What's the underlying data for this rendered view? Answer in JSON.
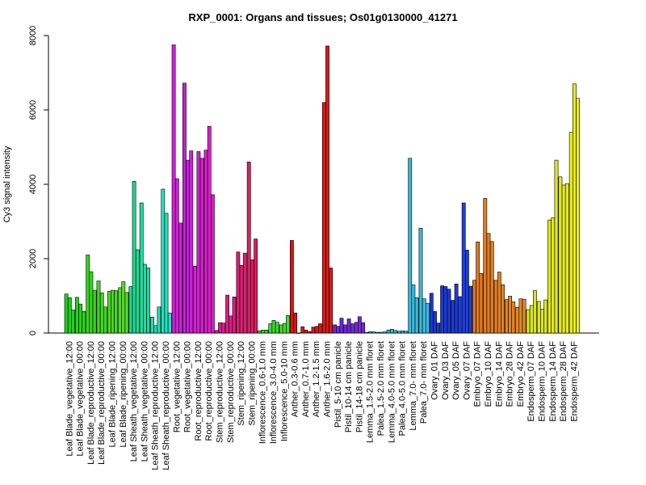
{
  "chart_data": {
    "type": "bar",
    "title": "RXP_0001: Organs and tissues; Os01g0130000_41271",
    "xlabel": "",
    "ylabel": "Cy3 signal intensity",
    "ylim": [
      0,
      8000
    ],
    "yticks": [
      0,
      2000,
      4000,
      6000,
      8000
    ],
    "grid": false,
    "legend": "none",
    "tick_labels": [
      "Leaf Blade_vegetative_12:00",
      "Leaf Blade_vegetative_00:00",
      "Leaf Blade_reproductive_12:00",
      "Leaf Blade_reproductive_00:00",
      "Leaf Blade_ripening_12:00",
      "Leaf Blade_ripening_00:00",
      "Leaf Sheath_vegetative_12:00",
      "Leaf Sheath_vegetative_00:00",
      "Leaf Sheath_reproductive_12:00",
      "Leaf Sheath_reproductive_00:00",
      "Root_vegetative_12:00",
      "Root_vegetative_00:00",
      "Root_reproductive_12:00",
      "Root_reproductive_00:00",
      "Stem_reproductive_12:00",
      "Stem_reproductive_00:00",
      "Stem_ripening_12:00",
      "Stem_ripening_00:00",
      "Inflorescence_0.6-1.0 mm",
      "Inflorescence_3.0-4.0 mm",
      "Inflorescence_5.0-10 mm",
      "Anther_0.3-0.6 mm",
      "Anther_0.7-1.0 mm",
      "Anther_1.2-1.5 mm",
      "Anther_1.6-2.0 mm",
      "Pistil_5-10 cm panicle",
      "Pistil_10-14 cm panicle",
      "Pistil_14-18 cm panicle",
      "Lemma_1.5-2.0 mm floret",
      "Palea_1.5-2.0 mm floret",
      "Lemma_4.0-5.0 mm floret",
      "Palea_4.0-5.0 mm floret",
      "Lemma_7.0- mm floret",
      "Palea_7.0- mm floret",
      "Ovary_01 DAF",
      "Ovary_03 DAF",
      "Ovary_05 DAF",
      "Ovary_07 DAF",
      "Embryo_07 DAF",
      "Embryo_10 DAF",
      "Embryo_14 DAF",
      "Embryo_28 DAF",
      "Embryo_42 DAF",
      "Endosperm_07 DAF",
      "Endosperm_10 DAF",
      "Endosperm_14 DAF",
      "Endosperm_28 DAF",
      "Endosperm_42 DAF"
    ],
    "groups": [
      {
        "name": "Leaf Blade_vegetative_12:00",
        "color": "#1ed01e",
        "values": [
          1050,
          950,
          620
        ]
      },
      {
        "name": "Leaf Blade_vegetative_00:00",
        "color": "#2ad21e",
        "values": [
          960,
          780,
          580
        ]
      },
      {
        "name": "Leaf Blade_reproductive_12:00",
        "color": "#36d420",
        "values": [
          2100,
          1650,
          1150
        ]
      },
      {
        "name": "Leaf Blade_reproductive_00:00",
        "color": "#40d622",
        "values": [
          1400,
          1080,
          700
        ]
      },
      {
        "name": "Leaf Blade_ripening_12:00",
        "color": "#4ad824",
        "values": [
          1120,
          1150,
          1140
        ]
      },
      {
        "name": "Leaf Blade_ripening_00:00",
        "color": "#52da28",
        "values": [
          1220,
          1380,
          1090
        ]
      },
      {
        "name": "Leaf Sheath_vegetative_12:00",
        "color": "#20d890",
        "values": [
          1250,
          4080,
          2240
        ]
      },
      {
        "name": "Leaf Sheath_vegetative_00:00",
        "color": "#22daa0",
        "values": [
          3500,
          1850,
          1750
        ]
      },
      {
        "name": "Leaf Sheath_reproductive_12:00",
        "color": "#24dcb0",
        "values": [
          430,
          200,
          700
        ]
      },
      {
        "name": "Leaf Sheath_reproductive_00:00",
        "color": "#26dec0",
        "values": [
          3870,
          3220,
          540
        ]
      },
      {
        "name": "Root_vegetative_12:00",
        "color": "#d020d8",
        "values": [
          7750,
          4150,
          2960
        ]
      },
      {
        "name": "Root_vegetative_00:00",
        "color": "#c620d8",
        "values": [
          6720,
          4650,
          4900
        ]
      },
      {
        "name": "Root_reproductive_12:00",
        "color": "#d420d0",
        "values": [
          1800,
          4880,
          4700
        ]
      },
      {
        "name": "Root_reproductive_00:00",
        "color": "#d820c8",
        "values": [
          4920,
          5560,
          3720
        ]
      },
      {
        "name": "Stem_reproductive_12:00",
        "color": "#d81e90",
        "values": [
          70,
          280,
          270
        ]
      },
      {
        "name": "Stem_reproductive_00:00",
        "color": "#da1e80",
        "values": [
          1020,
          460,
          970
        ]
      },
      {
        "name": "Stem_ripening_12:00",
        "color": "#dc1e70",
        "values": [
          2180,
          1820,
          2150
        ]
      },
      {
        "name": "Stem_ripening_00:00",
        "color": "#de1e60",
        "values": [
          4600,
          1970,
          2530
        ]
      },
      {
        "name": "Inflorescence_0.6-1.0 mm",
        "color": "#30d830",
        "values": [
          60,
          80,
          80
        ]
      },
      {
        "name": "Inflorescence_3.0-4.0 mm",
        "color": "#3ada30",
        "values": [
          250,
          340,
          290
        ]
      },
      {
        "name": "Inflorescence_5.0-10 mm",
        "color": "#44dc32",
        "values": [
          220,
          260,
          470
        ]
      },
      {
        "name": "Anther_0.3-0.6 mm",
        "color": "#d41616",
        "values": [
          2490,
          540,
          0
        ]
      },
      {
        "name": "Anther_0.7-1.0 mm",
        "color": "#d41818",
        "values": [
          170,
          80,
          40
        ]
      },
      {
        "name": "Anther_1.2-1.5 mm",
        "color": "#d41a1a",
        "values": [
          160,
          180,
          250
        ]
      },
      {
        "name": "Anther_1.6-2.0 mm",
        "color": "#d41c1c",
        "values": [
          6200,
          7720,
          1750
        ]
      },
      {
        "name": "Pistil_5-10 cm panicle",
        "color": "#6a28d8",
        "values": [
          220,
          180,
          400
        ]
      },
      {
        "name": "Pistil_10-14 cm panicle",
        "color": "#7028d8",
        "values": [
          220,
          380,
          250
        ]
      },
      {
        "name": "Pistil_14-18 cm panicle",
        "color": "#7828d8",
        "values": [
          290,
          440,
          280
        ]
      },
      {
        "name": "Lemma_1.5-2.0 mm floret",
        "color": "#30b0d8",
        "values": [
          20,
          40,
          30
        ]
      },
      {
        "name": "Palea_1.5-2.0 mm floret",
        "color": "#32b2d8",
        "values": [
          20,
          20,
          30
        ]
      },
      {
        "name": "Lemma_4.0-5.0 mm floret",
        "color": "#34b4da",
        "values": [
          80,
          100,
          70
        ]
      },
      {
        "name": "Palea_4.0-5.0 mm floret",
        "color": "#36b6da",
        "values": [
          50,
          60,
          50
        ]
      },
      {
        "name": "Lemma_7.0- mm floret",
        "color": "#38b8dc",
        "values": [
          4700,
          1300,
          950
        ]
      },
      {
        "name": "Palea_7.0- mm floret",
        "color": "#3abadc",
        "values": [
          2820,
          920,
          800
        ]
      },
      {
        "name": "Ovary_01 DAF",
        "color": "#1838d4",
        "values": [
          1070,
          580,
          270
        ]
      },
      {
        "name": "Ovary_03 DAF",
        "color": "#1a3ad4",
        "values": [
          1270,
          1250,
          1180
        ]
      },
      {
        "name": "Ovary_05 DAF",
        "color": "#1c3cd6",
        "values": [
          880,
          1320,
          980
        ]
      },
      {
        "name": "Ovary_07 DAF",
        "color": "#1e3ed6",
        "values": [
          3500,
          2230,
          1260
        ]
      },
      {
        "name": "Embryo_07 DAF",
        "color": "#e07820",
        "values": [
          1420,
          2450,
          1600
        ]
      },
      {
        "name": "Embryo_10 DAF",
        "color": "#e07c22",
        "values": [
          3620,
          2680,
          2460
        ]
      },
      {
        "name": "Embryo_14 DAF",
        "color": "#e08024",
        "values": [
          1420,
          1640,
          1300
        ]
      },
      {
        "name": "Embryo_28 DAF",
        "color": "#e08426",
        "values": [
          900,
          990,
          840
        ]
      },
      {
        "name": "Embryo_42 DAF",
        "color": "#e08828",
        "values": [
          690,
          920,
          910
        ]
      },
      {
        "name": "Endosperm_07 DAF",
        "color": "#d8e420",
        "values": [
          630,
          740,
          1140
        ]
      },
      {
        "name": "Endosperm_10 DAF",
        "color": "#dce620",
        "values": [
          850,
          640,
          890
        ]
      },
      {
        "name": "Endosperm_14 DAF",
        "color": "#e0e820",
        "values": [
          3040,
          3100,
          4650
        ]
      },
      {
        "name": "Endosperm_28 DAF",
        "color": "#e4ea20",
        "values": [
          4200,
          3980,
          4020
        ]
      },
      {
        "name": "Endosperm_42 DAF",
        "color": "#e8ec20",
        "values": [
          5400,
          6700,
          6310
        ]
      }
    ]
  }
}
